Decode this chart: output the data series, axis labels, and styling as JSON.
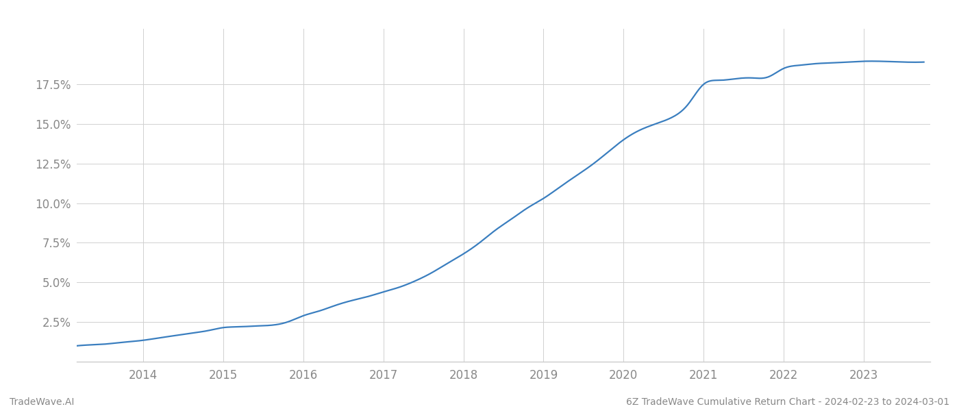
{
  "title": "",
  "footer_left": "TradeWave.AI",
  "footer_right": "6Z TradeWave Cumulative Return Chart - 2024-02-23 to 2024-03-01",
  "line_color": "#3a7ebf",
  "line_width": 1.6,
  "background_color": "#ffffff",
  "grid_color": "#d0d0d0",
  "x_years": [
    2014,
    2015,
    2016,
    2017,
    2018,
    2019,
    2020,
    2021,
    2022,
    2023
  ],
  "x_values": [
    2013.17,
    2013.3,
    2013.5,
    2013.7,
    2014.0,
    2014.2,
    2014.4,
    2014.6,
    2014.8,
    2015.0,
    2015.2,
    2015.4,
    2015.6,
    2015.8,
    2016.0,
    2016.2,
    2016.4,
    2016.6,
    2016.8,
    2017.0,
    2017.2,
    2017.4,
    2017.6,
    2017.8,
    2018.0,
    2018.2,
    2018.4,
    2018.6,
    2018.8,
    2019.0,
    2019.2,
    2019.4,
    2019.6,
    2019.8,
    2020.0,
    2020.2,
    2020.4,
    2020.6,
    2020.8,
    2021.0,
    2021.2,
    2021.4,
    2021.6,
    2021.8,
    2022.0,
    2022.2,
    2022.4,
    2022.6,
    2022.8,
    2023.0,
    2023.2,
    2023.5,
    2023.75
  ],
  "y_values": [
    1.0,
    1.05,
    1.1,
    1.2,
    1.35,
    1.5,
    1.65,
    1.8,
    1.95,
    2.15,
    2.2,
    2.25,
    2.3,
    2.5,
    2.9,
    3.2,
    3.55,
    3.85,
    4.1,
    4.4,
    4.7,
    5.1,
    5.6,
    6.2,
    6.8,
    7.5,
    8.3,
    9.0,
    9.7,
    10.3,
    11.0,
    11.7,
    12.4,
    13.2,
    14.0,
    14.6,
    15.0,
    15.4,
    16.2,
    17.5,
    17.75,
    17.85,
    17.9,
    17.95,
    18.5,
    18.7,
    18.8,
    18.85,
    18.9,
    18.95,
    18.95,
    18.9,
    18.9
  ],
  "ylim_min": 0.0,
  "ylim_max": 21.0,
  "yticks": [
    2.5,
    5.0,
    7.5,
    10.0,
    12.5,
    15.0,
    17.5
  ],
  "xlim_min": 2013.17,
  "xlim_max": 2023.83,
  "tick_color": "#888888",
  "footer_color": "#888888",
  "footer_fontsize": 10,
  "tick_fontsize": 12
}
